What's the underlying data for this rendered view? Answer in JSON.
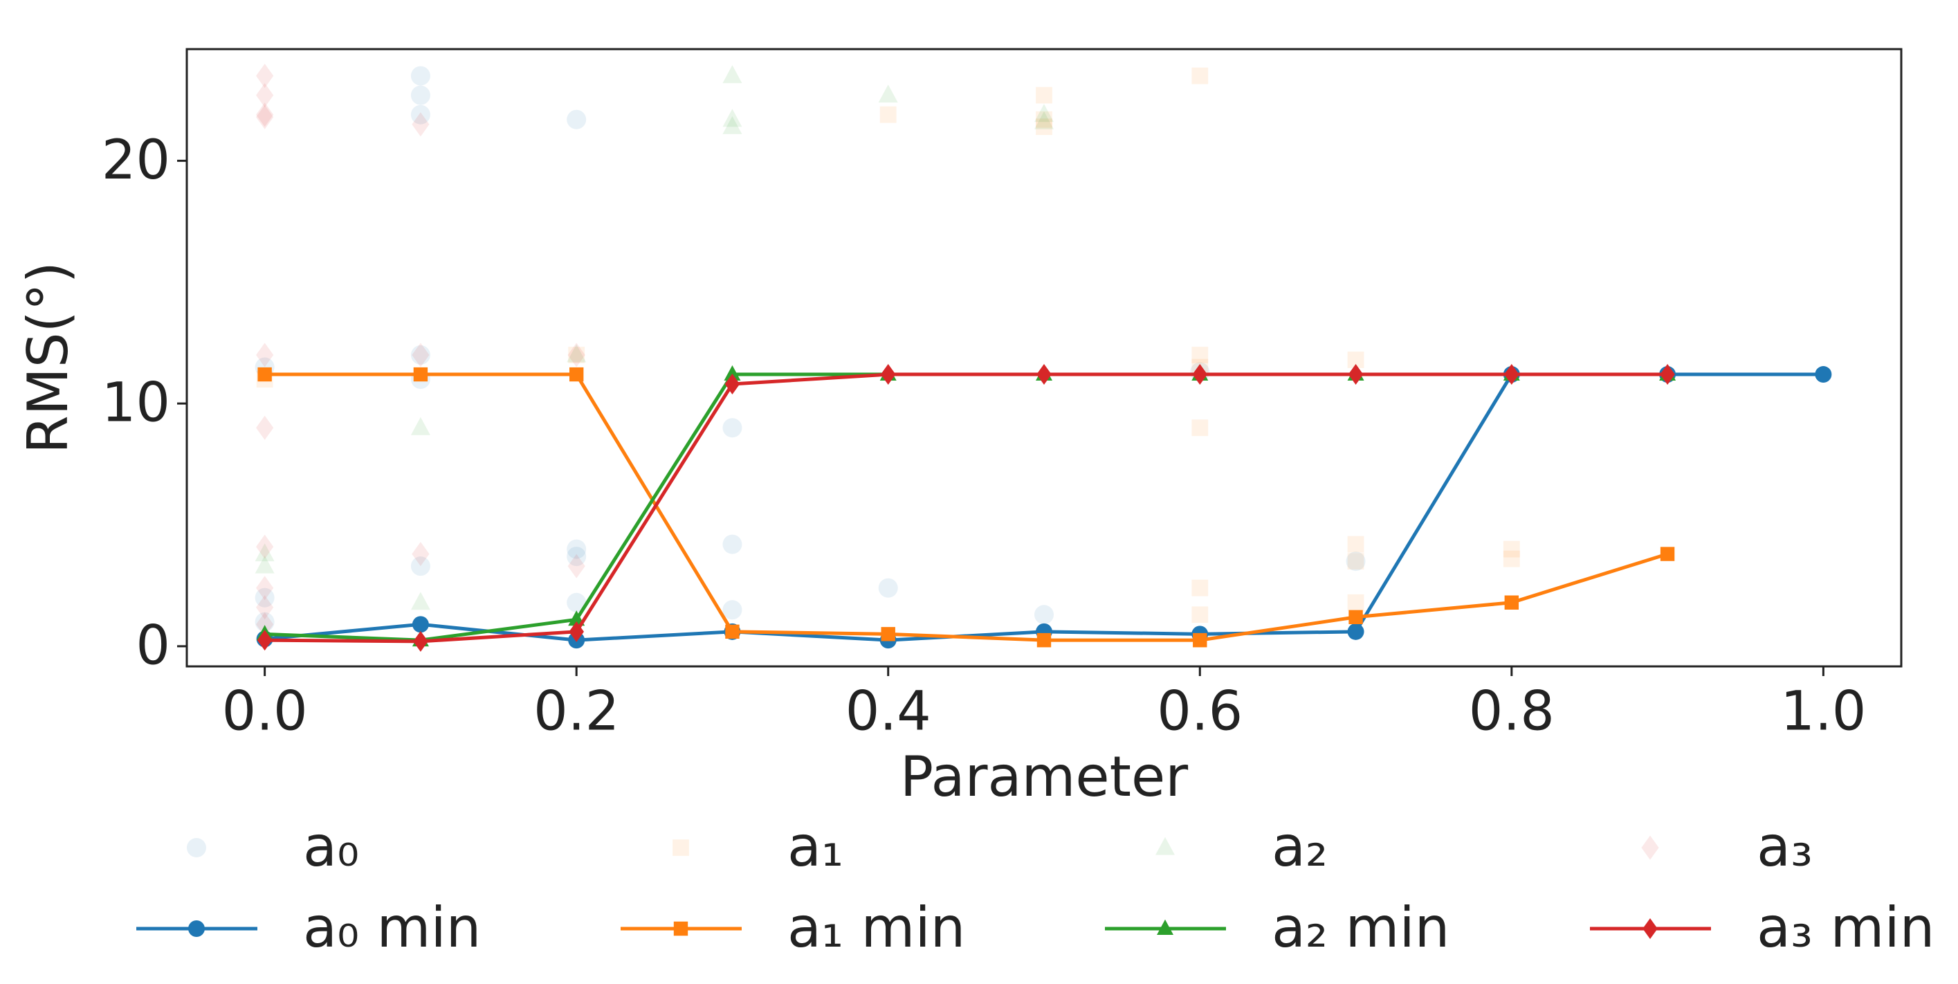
{
  "chart_data": {
    "type": "line",
    "xlabel": "Parameter",
    "ylabel": "RMS(°)",
    "xlim": [
      -0.05,
      1.05
    ],
    "ylim": [
      -0.83,
      24.6
    ],
    "xticks": [
      {
        "value": 0,
        "label": "0.0"
      },
      {
        "value": 0.2,
        "label": "0.2"
      },
      {
        "value": 0.4,
        "label": "0.4"
      },
      {
        "value": 0.6,
        "label": "0.6"
      },
      {
        "value": 0.8,
        "label": "0.8"
      },
      {
        "value": 1.0,
        "label": "1.0"
      }
    ],
    "yticks": [
      0,
      10,
      20
    ],
    "legend": "bottom",
    "series": [
      {
        "name": "a₀",
        "style": "scatter",
        "marker": "circle",
        "color": "#1f77b4",
        "alpha": 0.1,
        "x": [
          0,
          0,
          0,
          0.1,
          0.1,
          0.1,
          0.1,
          0.1,
          0.1,
          0.2,
          0.2,
          0.2,
          0.2,
          0.3,
          0.3,
          0.3,
          0.4,
          0.5,
          0.6,
          0.7
        ],
        "values": [
          1.0,
          2.0,
          11.5,
          23.5,
          22.7,
          21.9,
          12.0,
          11.0,
          3.3,
          21.7,
          4.0,
          3.7,
          1.8,
          9.0,
          4.2,
          1.5,
          2.4,
          1.3,
          11.3,
          3.5
        ]
      },
      {
        "name": "a₁",
        "style": "scatter",
        "marker": "square",
        "color": "#ff7f0e",
        "alpha": 0.1,
        "x": [
          0,
          0.2,
          0.4,
          0.5,
          0.5,
          0.5,
          0.6,
          0.6,
          0.6,
          0.6,
          0.6,
          0.6,
          0.7,
          0.7,
          0.7,
          0.7,
          0.8,
          0.8
        ],
        "values": [
          11.0,
          12.0,
          21.9,
          22.7,
          21.7,
          21.4,
          23.5,
          12.0,
          11.5,
          9.0,
          2.4,
          1.3,
          11.8,
          4.2,
          3.5,
          1.8,
          4.0,
          3.6
        ]
      },
      {
        "name": "a₂",
        "style": "scatter",
        "marker": "triangle",
        "color": "#2ca02c",
        "alpha": 0.1,
        "x": [
          0,
          0,
          0.1,
          0.1,
          0.2,
          0.3,
          0.3,
          0.3,
          0.4,
          0.5,
          0.5
        ],
        "values": [
          3.3,
          3.8,
          9.0,
          1.8,
          12.0,
          23.5,
          21.7,
          21.4,
          22.7,
          21.9,
          21.6
        ]
      },
      {
        "name": "a₃",
        "style": "scatter",
        "marker": "diamond",
        "color": "#d62728",
        "alpha": 0.1,
        "x": [
          0,
          0,
          0,
          0,
          0,
          0,
          0,
          0,
          0,
          0,
          0.1,
          0.1,
          0.1,
          0.2,
          0.2
        ],
        "values": [
          23.5,
          22.7,
          21.9,
          21.8,
          12.0,
          9.0,
          4.1,
          2.4,
          1.6,
          0.9,
          21.5,
          12.0,
          3.8,
          3.3,
          12.0
        ]
      },
      {
        "name": "a₀ min",
        "style": "line",
        "marker": "circle",
        "color": "#1f77b4",
        "alpha": 1,
        "x": [
          0,
          0.1,
          0.2,
          0.3,
          0.4,
          0.5,
          0.6,
          0.7,
          0.8,
          0.9,
          1.0
        ],
        "values": [
          0.3,
          0.9,
          0.25,
          0.6,
          0.25,
          0.6,
          0.5,
          0.6,
          11.2,
          11.2,
          11.2
        ]
      },
      {
        "name": "a₁ min",
        "style": "line",
        "marker": "square",
        "color": "#ff7f0e",
        "alpha": 1,
        "x": [
          0,
          0.1,
          0.2,
          0.3,
          0.4,
          0.5,
          0.6,
          0.7,
          0.8,
          0.9
        ],
        "values": [
          11.2,
          11.2,
          11.2,
          0.6,
          0.5,
          0.25,
          0.25,
          1.2,
          1.8,
          3.8
        ]
      },
      {
        "name": "a₂ min",
        "style": "line",
        "marker": "triangle",
        "color": "#2ca02c",
        "alpha": 1,
        "x": [
          0,
          0.1,
          0.2,
          0.3,
          0.4,
          0.5,
          0.6,
          0.7,
          0.8,
          0.9
        ],
        "values": [
          0.5,
          0.25,
          1.1,
          11.2,
          11.2,
          11.2,
          11.2,
          11.2,
          11.2,
          11.2
        ]
      },
      {
        "name": "a₃ min",
        "style": "line",
        "marker": "diamond",
        "color": "#d62728",
        "alpha": 1,
        "x": [
          0,
          0.1,
          0.2,
          0.3,
          0.4,
          0.5,
          0.6,
          0.7,
          0.8,
          0.9
        ],
        "values": [
          0.25,
          0.2,
          0.6,
          10.8,
          11.2,
          11.2,
          11.2,
          11.2,
          11.2,
          11.2
        ]
      }
    ]
  }
}
